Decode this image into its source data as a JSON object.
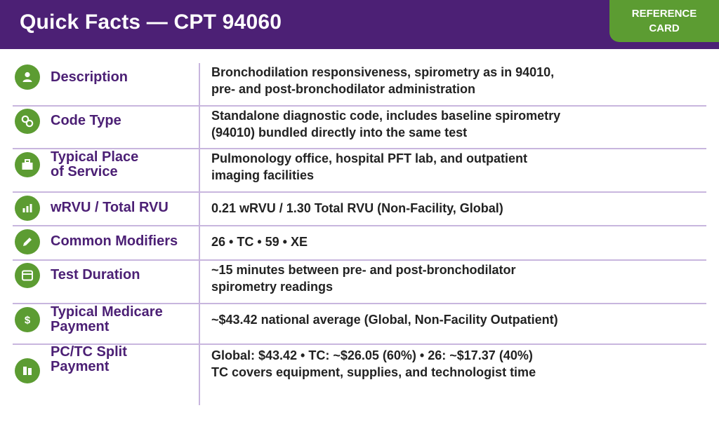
{
  "header": {
    "title": "Quick Facts — CPT 94060",
    "badge_line1": "REFERENCE",
    "badge_line2": "CARD"
  },
  "colors": {
    "header_bg": "#4c2075",
    "accent_green": "#5c9c32",
    "label_purple": "#4c2075",
    "divider": "#c8b6de"
  },
  "rows": [
    {
      "icon": "person-icon",
      "label_lines": [
        "Description"
      ],
      "value_lines": [
        "Bronchodilation responsiveness, spirometry as in 94010,",
        "pre- and post-bronchodilator administration"
      ]
    },
    {
      "icon": "link-icon",
      "label_lines": [
        "Code Type"
      ],
      "value_lines": [
        "Standalone diagnostic code, includes baseline spirometry",
        "(94010) bundled directly into the same test"
      ]
    },
    {
      "icon": "briefcase-icon",
      "label_lines": [
        "Typical Place",
        "of Service"
      ],
      "value_lines": [
        "Pulmonology office, hospital PFT lab, and outpatient",
        "imaging facilities"
      ]
    },
    {
      "icon": "bar-chart-icon",
      "label_lines": [
        "wRVU / Total RVU"
      ],
      "value_lines": [
        "0.21 wRVU / 1.30 Total RVU (Non-Facility, Global)"
      ]
    },
    {
      "icon": "pencil-icon",
      "label_lines": [
        "Common Modifiers"
      ],
      "value_lines": [
        "26 • TC • 59 • XE"
      ]
    },
    {
      "icon": "calendar-icon",
      "label_lines": [
        "Test Duration"
      ],
      "value_lines": [
        "~15 minutes between pre- and post-bronchodilator",
        "spirometry readings"
      ]
    },
    {
      "icon": "dollar-icon",
      "label_lines": [
        "Typical Medicare",
        "Payment"
      ],
      "value_lines": [
        "~$43.42 national average (Global, Non-Facility Outpatient)"
      ]
    },
    {
      "icon": "split-icon",
      "label_lines": [
        "PC/TC Split",
        "Payment"
      ],
      "value_lines": [
        "Global: $43.42 • TC: ~$26.05 (60%) • 26: ~$17.37 (40%)",
        "TC covers equipment, supplies, and technologist time"
      ]
    }
  ]
}
